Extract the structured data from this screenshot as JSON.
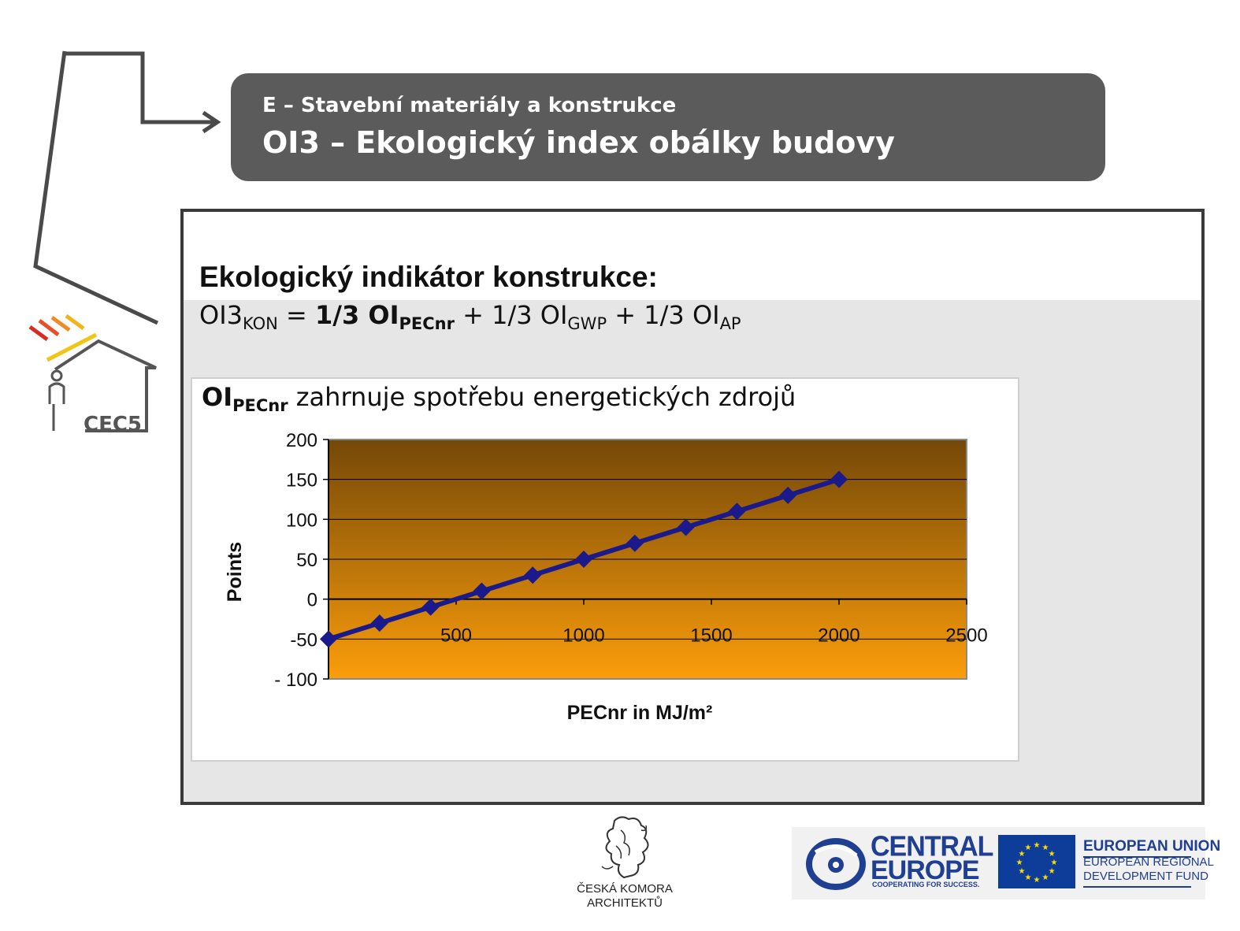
{
  "header": {
    "subtitle": "E – Stavební materiály a konstrukce",
    "title": "OI3 – Ekologický index obálky budovy"
  },
  "sidebar_logo": {
    "text": "CEC5"
  },
  "content": {
    "heading": "Ekologický indikátor konstrukce:",
    "formula": {
      "lhs": "OI3",
      "lhs_sub": "KON",
      "eq": " = ",
      "term1": "1/3 OI",
      "term1_sub": "PECnr",
      "term2": " + 1/3 OI",
      "term2_sub": "GWP",
      "term3": " + 1/3 OI",
      "term3_sub": "AP"
    },
    "chart_caption": {
      "bold": "OI",
      "sub": "PECnr",
      "rest": " zahrnuje spotřebu energetických zdrojů"
    }
  },
  "chart_data": {
    "type": "line",
    "x": [
      0,
      200,
      400,
      600,
      800,
      1000,
      1200,
      1400,
      1600,
      1800,
      2000
    ],
    "series": [
      {
        "values": [
          -50,
          -30,
          -10,
          10,
          30,
          50,
          70,
          90,
          110,
          130,
          150
        ],
        "color": "#1a1a8c"
      }
    ],
    "xlabel": "PECnr in MJ/m²",
    "ylabel": "Points",
    "xlim": [
      0,
      2500
    ],
    "ylim": [
      -100,
      200
    ],
    "xticks": [
      "500",
      "1000",
      "1500",
      "2000",
      "2500"
    ],
    "xtick_values": [
      500,
      1000,
      1500,
      2000,
      2500
    ],
    "yticks": [
      "200",
      "150",
      "100",
      "50",
      "0",
      "-50",
      "- 100"
    ],
    "ytick_values": [
      200,
      150,
      100,
      50,
      0,
      -50,
      -100
    ],
    "grid": true,
    "plot_background": [
      "#744808",
      "#fb9d0b"
    ]
  },
  "footer": {
    "cka_line1": "ČESKÁ KOMORA",
    "cka_line2": "ARCHITEKTŮ",
    "ce_line1": "CENTRAL",
    "ce_line2": "EUROPE",
    "ce_tagline": "COOPERATING FOR SUCCESS.",
    "eu_line1": "EUROPEAN UNION",
    "eu_line2": "EUROPEAN REGIONAL",
    "eu_line3": "DEVELOPMENT FUND"
  }
}
